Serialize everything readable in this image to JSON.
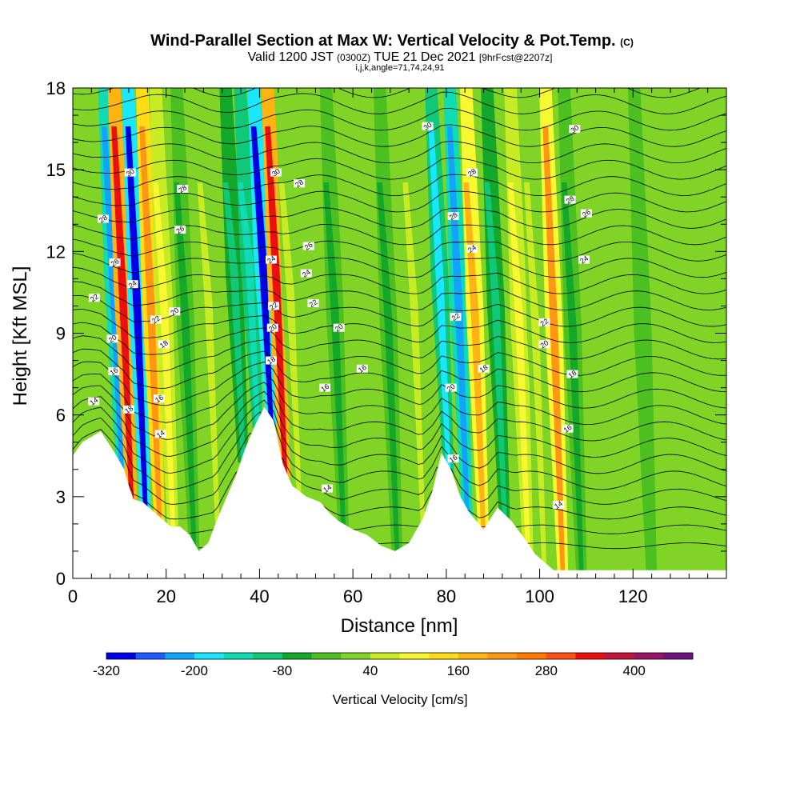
{
  "chart_data": {
    "type": "heatmap",
    "title": "Wind-Parallel Section at Max W: Vertical Velocity & Pot.Temp.",
    "title_mark": "(C)",
    "subtitle_parts": [
      "Valid 1200 JST ",
      "(0300Z)",
      " TUE 21 Dec 2021 ",
      "[9hrFcst@2207z]"
    ],
    "subtitle2": "i,j,k,angle=71,74,24,91",
    "xlabel": "Distance [nm]",
    "ylabel": "Height [Kft MSL]",
    "xlim": [
      0,
      140
    ],
    "ylim": [
      0,
      18
    ],
    "x_ticks": [
      0,
      20,
      40,
      60,
      80,
      100,
      120
    ],
    "x_tick_labels": [
      "0",
      "20",
      "40",
      "60",
      "80",
      "100",
      "120"
    ],
    "y_ticks": [
      0,
      3,
      6,
      9,
      12,
      15,
      18
    ],
    "y_tick_labels": [
      "0",
      "3",
      "6",
      "9",
      "12",
      "15",
      "18"
    ],
    "colorbar": {
      "title": "Vertical Velocity [cm/s]",
      "levels": [
        -320,
        -280,
        -240,
        -200,
        -160,
        -120,
        -80,
        -40,
        0,
        40,
        80,
        120,
        160,
        200,
        240,
        280,
        320,
        360,
        400,
        440
      ],
      "colors": [
        "#0000e6",
        "#1f5bff",
        "#12a3ff",
        "#19e6ff",
        "#10dcb4",
        "#0fc878",
        "#14a82a",
        "#4cc020",
        "#7fd426",
        "#c7ec24",
        "#f8f832",
        "#ffdc14",
        "#ffb414",
        "#ff9614",
        "#ff7800",
        "#ff5014",
        "#eb0f0f",
        "#c0143c",
        "#991464",
        "#6e147d"
      ],
      "tick_values": [
        -320,
        -200,
        -80,
        40,
        160,
        280,
        400
      ],
      "tick_labels": [
        "-320",
        "-200",
        "-80",
        "40",
        "160",
        "280",
        "400"
      ]
    },
    "terrain": {
      "x": [
        0,
        2,
        6,
        9,
        11,
        12,
        13,
        15,
        17,
        19,
        21,
        23,
        25,
        27,
        29,
        31,
        33,
        35,
        37,
        39,
        41,
        43,
        44,
        45,
        47,
        50,
        53,
        55,
        57,
        60,
        63,
        66,
        69,
        72,
        75,
        77,
        79,
        81,
        83,
        85,
        88,
        91,
        94,
        97,
        99,
        101,
        103,
        105,
        110,
        120,
        130,
        140
      ],
      "height": [
        4.5,
        5.0,
        5.4,
        4.6,
        4.0,
        3.4,
        2.9,
        2.8,
        2.5,
        2.2,
        1.9,
        1.9,
        1.6,
        1.0,
        1.3,
        2.2,
        3.0,
        3.8,
        4.8,
        5.6,
        6.3,
        5.8,
        5.0,
        4.2,
        3.4,
        3.0,
        2.8,
        2.4,
        2.1,
        1.8,
        1.6,
        1.2,
        1.0,
        1.3,
        2.2,
        3.2,
        4.6,
        4.0,
        3.0,
        2.4,
        1.8,
        2.6,
        2.1,
        1.4,
        0.9,
        0.6,
        0.3,
        0.3,
        0.3,
        0.3,
        0.3,
        0.3
      ]
    },
    "bands": [
      {
        "x": 10.5,
        "value": -240
      },
      {
        "x": 12.6,
        "value": 330
      },
      {
        "x": 15.6,
        "value": -320
      },
      {
        "x": 18.6,
        "value": 220
      },
      {
        "x": 21.5,
        "value": 80
      },
      {
        "x": 26.0,
        "value": -60
      },
      {
        "x": 31.0,
        "value": 60
      },
      {
        "x": 36.5,
        "value": -90
      },
      {
        "x": 39.6,
        "value": -160
      },
      {
        "x": 42.5,
        "value": -320
      },
      {
        "x": 45.5,
        "value": 340
      },
      {
        "x": 48.5,
        "value": 60
      },
      {
        "x": 53.5,
        "value": 30
      },
      {
        "x": 58.0,
        "value": -50
      },
      {
        "x": 64.0,
        "value": 20
      },
      {
        "x": 69.5,
        "value": -70
      },
      {
        "x": 75.0,
        "value": 40
      },
      {
        "x": 80.5,
        "value": -200
      },
      {
        "x": 84.5,
        "value": -240
      },
      {
        "x": 88.0,
        "value": 180
      },
      {
        "x": 92.5,
        "value": -120
      },
      {
        "x": 97.5,
        "value": 110
      },
      {
        "x": 101.0,
        "value": 60
      },
      {
        "x": 105.0,
        "value": 210
      },
      {
        "x": 109.0,
        "value": -60
      },
      {
        "x": 116.0,
        "value": 30
      },
      {
        "x": 124.0,
        "value": -40
      },
      {
        "x": 132.0,
        "value": 20
      }
    ],
    "contour_labels": [
      {
        "text": "30",
        "x": 12.3,
        "y": 14.9
      },
      {
        "text": "28",
        "x": 6.5,
        "y": 13.2
      },
      {
        "text": "26",
        "x": 9.0,
        "y": 11.6
      },
      {
        "text": "24",
        "x": 12.8,
        "y": 10.8
      },
      {
        "text": "22",
        "x": 4.6,
        "y": 10.3
      },
      {
        "text": "22",
        "x": 17.8,
        "y": 9.5
      },
      {
        "text": "20",
        "x": 21.8,
        "y": 9.8
      },
      {
        "text": "20",
        "x": 8.5,
        "y": 8.8
      },
      {
        "text": "18",
        "x": 19.5,
        "y": 8.6
      },
      {
        "text": "16",
        "x": 8.8,
        "y": 7.6
      },
      {
        "text": "16",
        "x": 18.5,
        "y": 6.6
      },
      {
        "text": "14",
        "x": 4.5,
        "y": 6.5
      },
      {
        "text": "18",
        "x": 12.0,
        "y": 6.2
      },
      {
        "text": "14",
        "x": 18.8,
        "y": 5.3
      },
      {
        "text": "28",
        "x": 23.5,
        "y": 14.3
      },
      {
        "text": "26",
        "x": 23.0,
        "y": 12.8
      },
      {
        "text": "30",
        "x": 43.5,
        "y": 14.9
      },
      {
        "text": "28",
        "x": 48.5,
        "y": 14.5
      },
      {
        "text": "26",
        "x": 50.5,
        "y": 12.2
      },
      {
        "text": "24",
        "x": 42.5,
        "y": 11.7
      },
      {
        "text": "24",
        "x": 50.0,
        "y": 11.2
      },
      {
        "text": "22",
        "x": 43.0,
        "y": 10.0
      },
      {
        "text": "22",
        "x": 51.5,
        "y": 10.1
      },
      {
        "text": "20",
        "x": 42.8,
        "y": 9.2
      },
      {
        "text": "20",
        "x": 57.0,
        "y": 9.2
      },
      {
        "text": "18",
        "x": 42.5,
        "y": 8.0
      },
      {
        "text": "16",
        "x": 62.0,
        "y": 7.7
      },
      {
        "text": "16",
        "x": 54.0,
        "y": 7.0
      },
      {
        "text": "14",
        "x": 54.5,
        "y": 3.3
      },
      {
        "text": "30",
        "x": 76.0,
        "y": 16.6
      },
      {
        "text": "28",
        "x": 85.5,
        "y": 14.9
      },
      {
        "text": "28",
        "x": 81.5,
        "y": 13.3
      },
      {
        "text": "24",
        "x": 85.5,
        "y": 12.1
      },
      {
        "text": "22",
        "x": 82.0,
        "y": 9.6
      },
      {
        "text": "18",
        "x": 88.0,
        "y": 7.7
      },
      {
        "text": "20",
        "x": 81.0,
        "y": 7.0
      },
      {
        "text": "16",
        "x": 81.5,
        "y": 4.4
      },
      {
        "text": "30",
        "x": 107.5,
        "y": 16.5
      },
      {
        "text": "28",
        "x": 106.5,
        "y": 13.9
      },
      {
        "text": "26",
        "x": 110.0,
        "y": 13.4
      },
      {
        "text": "24",
        "x": 109.5,
        "y": 11.7
      },
      {
        "text": "22",
        "x": 101.0,
        "y": 9.4
      },
      {
        "text": "20",
        "x": 101.0,
        "y": 8.6
      },
      {
        "text": "18",
        "x": 107.0,
        "y": 7.5
      },
      {
        "text": "16",
        "x": 106.0,
        "y": 5.5
      },
      {
        "text": "14",
        "x": 104.0,
        "y": 2.7
      }
    ]
  }
}
